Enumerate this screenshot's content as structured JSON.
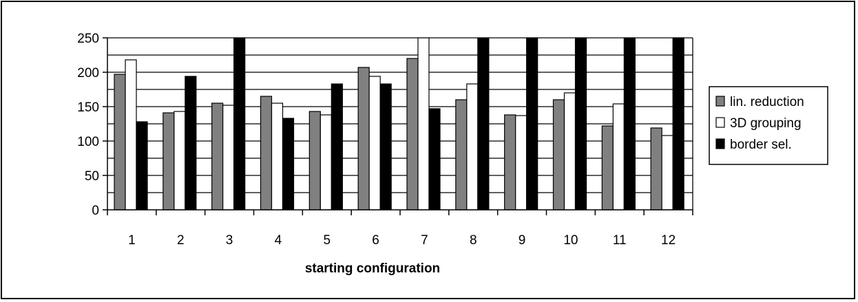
{
  "chart_data": {
    "type": "bar",
    "title": "",
    "xlabel": "starting configuration",
    "ylabel": "",
    "ylim": [
      0,
      250
    ],
    "yticks": [
      0,
      50,
      100,
      150,
      200,
      250
    ],
    "grid": true,
    "legend_position": "right",
    "categories": [
      "1",
      "2",
      "3",
      "4",
      "5",
      "6",
      "7",
      "8",
      "9",
      "10",
      "11",
      "12"
    ],
    "series": [
      {
        "name": "lin. reduction",
        "color": "#808080",
        "values": [
          197,
          141,
          155,
          165,
          143,
          207,
          220,
          160,
          138,
          160,
          122,
          119
        ]
      },
      {
        "name": "3D grouping",
        "color": "#ffffff",
        "values": [
          218,
          143,
          152,
          155,
          138,
          194,
          250,
          183,
          137,
          170,
          154,
          108
        ]
      },
      {
        "name": "border sel.",
        "color": "#000000",
        "values": [
          128,
          194,
          250,
          133,
          183,
          183,
          147,
          250,
          250,
          250,
          250,
          250
        ]
      }
    ]
  }
}
